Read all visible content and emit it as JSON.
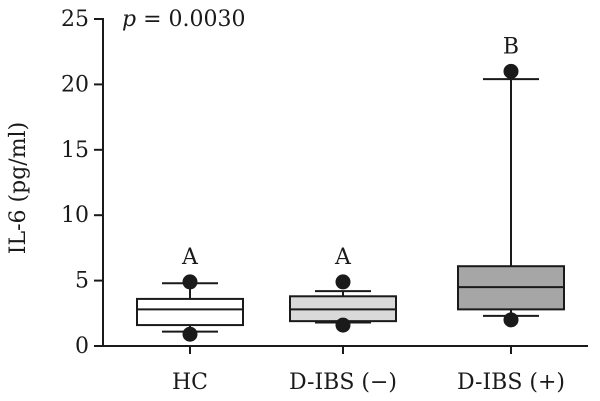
{
  "chart_data": {
    "type": "box",
    "annotation": {
      "p_symbol": "p",
      "p_value": "= 0.0030"
    },
    "ylabel": "IL-6 (pg/ml)",
    "xlabel": "",
    "ylim": [
      0,
      25
    ],
    "yticks": [
      "0",
      "5",
      "10",
      "15",
      "20",
      "25"
    ],
    "categories": [
      "HC",
      "D-IBS (−)",
      "D-IBS (+)"
    ],
    "grid": false,
    "legend": "none",
    "boxes": [
      {
        "category": "HC",
        "whisker_low": 1.1,
        "q1": 1.6,
        "median": 2.8,
        "q3": 3.6,
        "whisker_high": 4.8,
        "outliers": [
          0.9,
          4.9
        ],
        "significance": "A",
        "fill": "#ffffff"
      },
      {
        "category": "D-IBS (−)",
        "whisker_low": 1.8,
        "q1": 1.9,
        "median": 2.8,
        "q3": 3.8,
        "whisker_high": 4.2,
        "outliers": [
          1.6,
          4.9
        ],
        "significance": "A",
        "fill": "#d9d9d9"
      },
      {
        "category": "D-IBS (+)",
        "whisker_low": 2.3,
        "q1": 2.8,
        "median": 4.5,
        "q3": 6.1,
        "whisker_high": 20.4,
        "outliers": [
          2.0,
          21.0
        ],
        "significance": "B",
        "fill": "#a6a6a6"
      }
    ]
  }
}
